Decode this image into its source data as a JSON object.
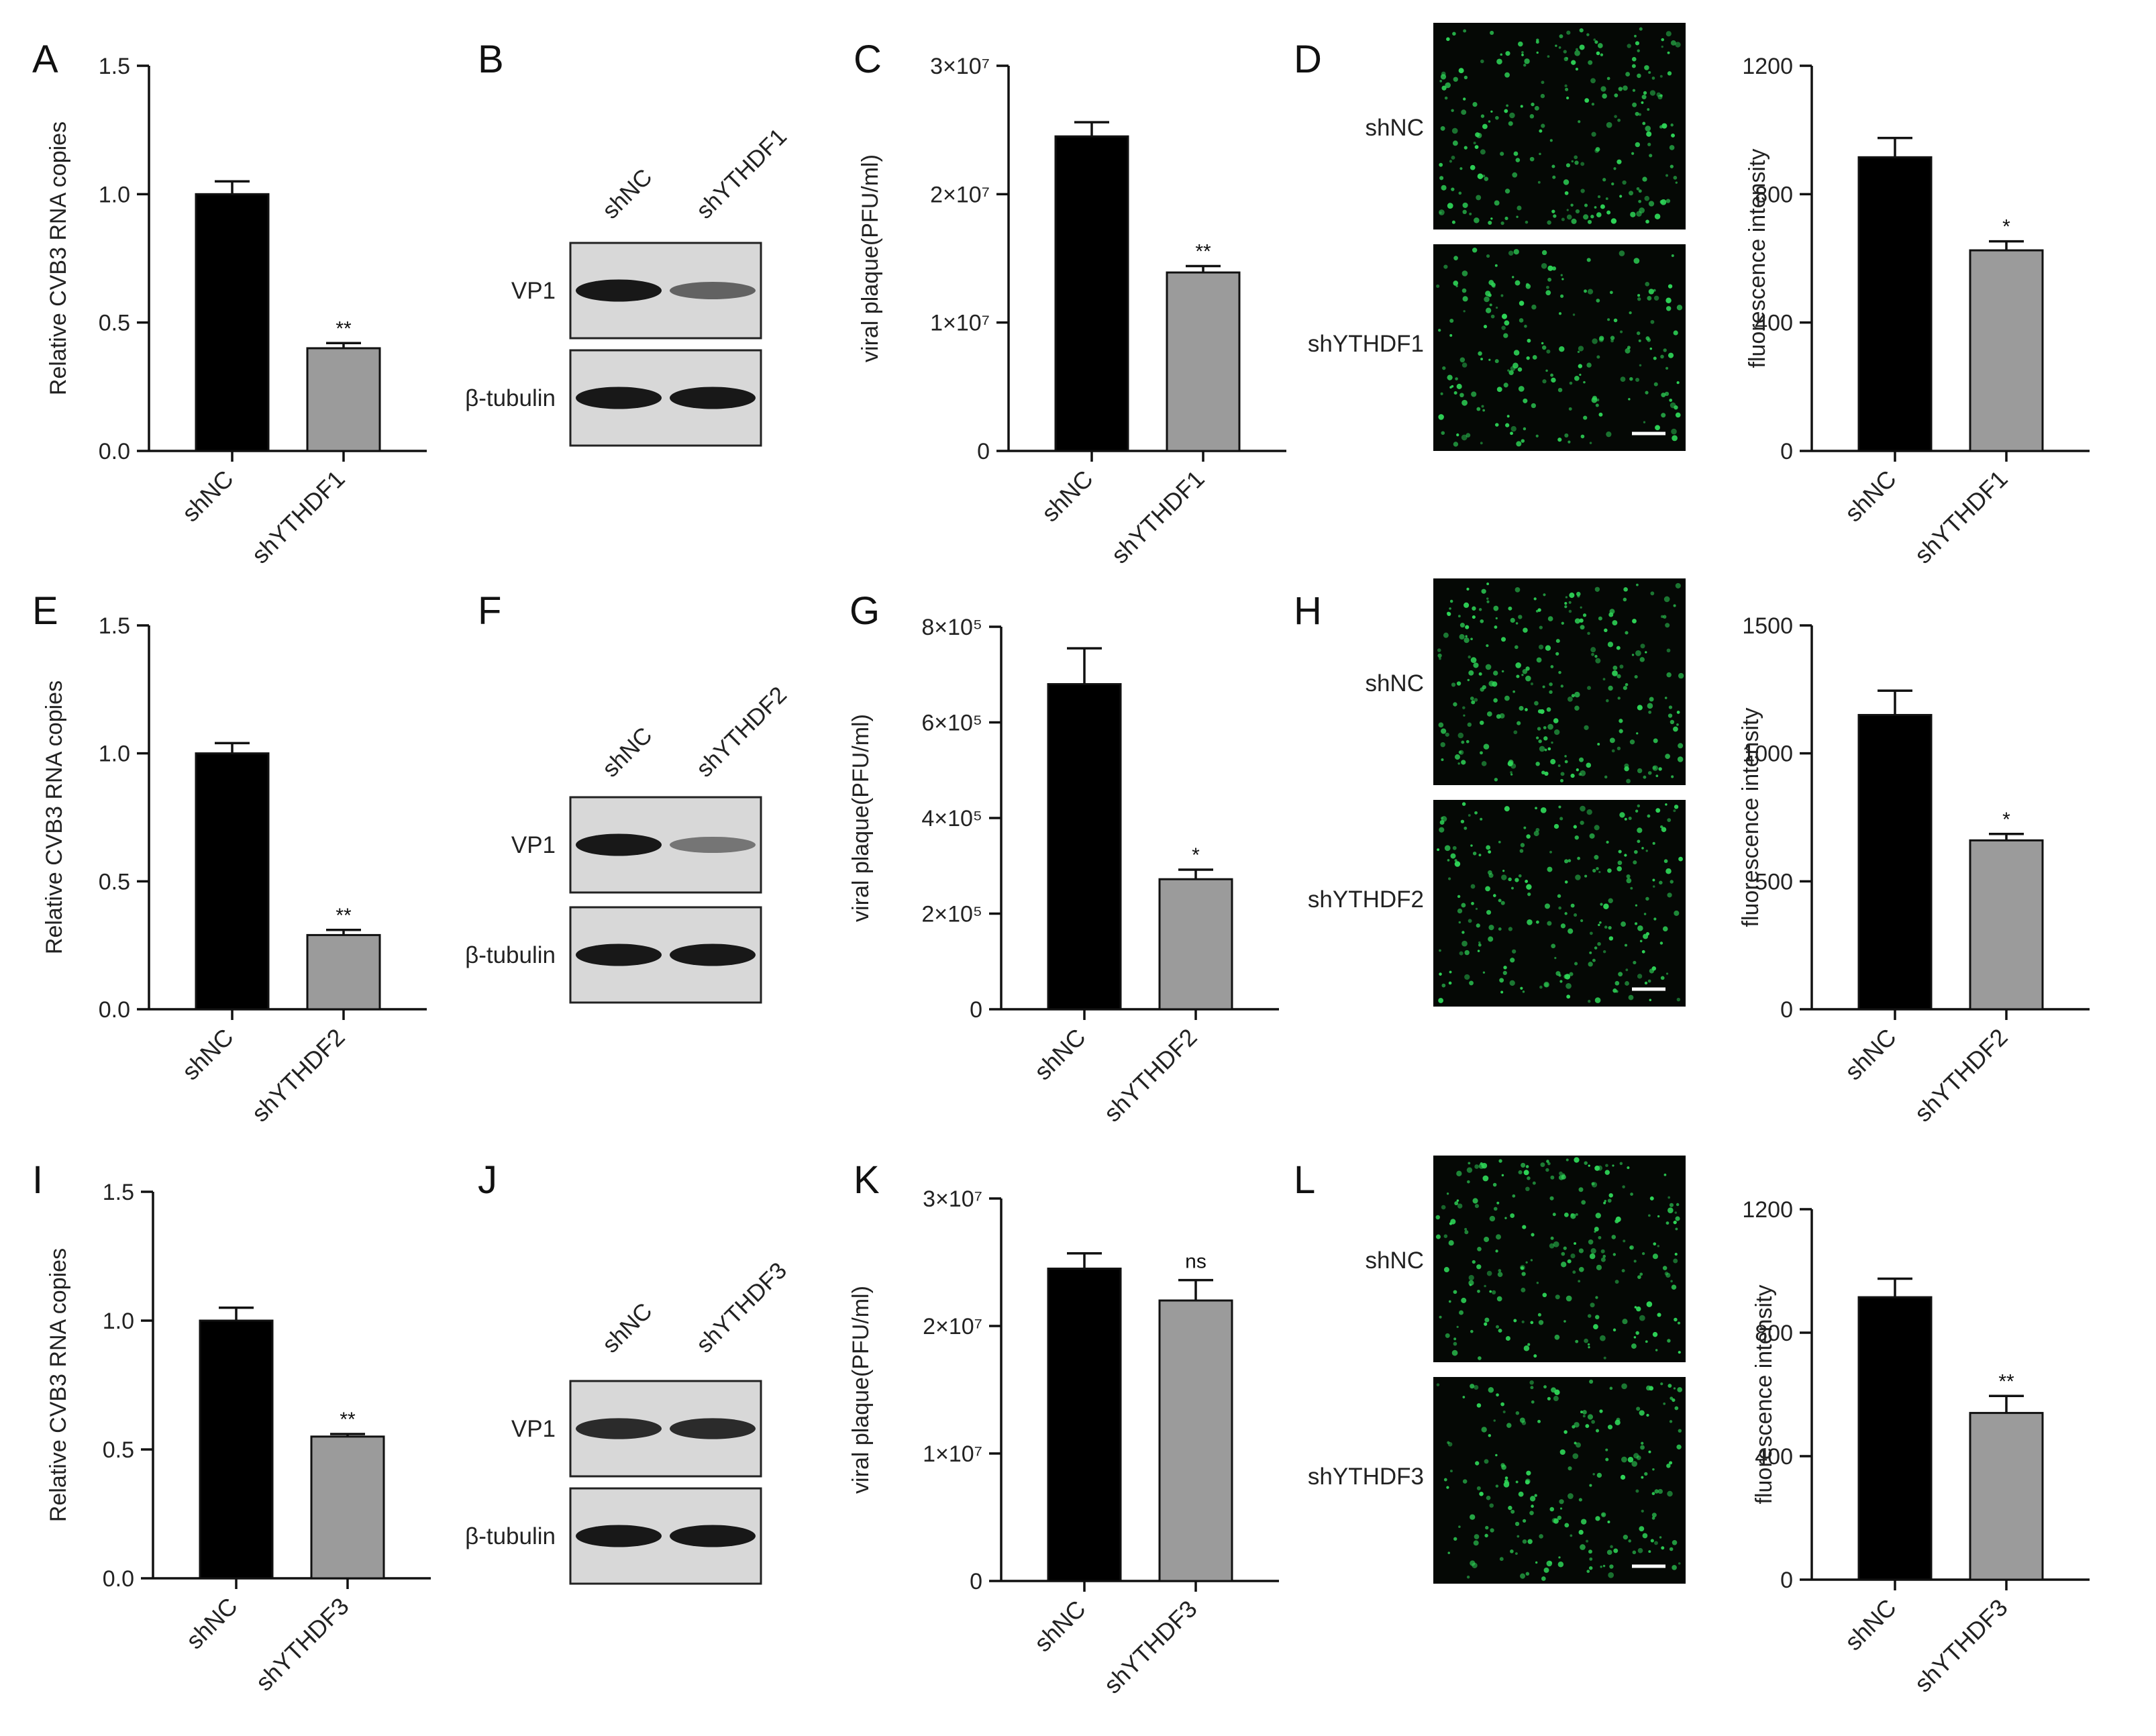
{
  "figure": {
    "colors": {
      "bar_control": "#000000",
      "bar_treatment": "#9b9b9b",
      "axis": "#111111",
      "micro_bg": "#050805",
      "micro_dot": "#2ed457",
      "blot_bg": "#d8d8d8"
    }
  },
  "chart_data": [
    {
      "panel": "A",
      "type": "bar",
      "categories": [
        "shNC",
        "shYTHDF1"
      ],
      "values": [
        1.0,
        0.4
      ],
      "errors": [
        0.05,
        0.02
      ],
      "significance": [
        "",
        "**"
      ],
      "ylabel": "Relative CVB3 RNA copies",
      "ylim": [
        0,
        1.5
      ],
      "yticks": [
        0,
        0.5,
        1.0,
        1.5
      ],
      "ytick_labels": [
        "0.0",
        "0.5",
        "1.0",
        "1.5"
      ]
    },
    {
      "panel": "C",
      "type": "bar",
      "categories": [
        "shNC",
        "shYTHDF1"
      ],
      "values": [
        24500000,
        13900000
      ],
      "errors": [
        1100000,
        500000
      ],
      "significance": [
        "",
        "**"
      ],
      "ylabel": "viral plaque(PFU/ml)",
      "ylim": [
        0,
        30000000
      ],
      "yticks": [
        0,
        10000000,
        20000000,
        30000000
      ],
      "ytick_labels": [
        "0",
        "1×10⁷",
        "2×10⁷",
        "3×10⁷"
      ]
    },
    {
      "panel": "D",
      "type": "bar",
      "categories": [
        "shNC",
        "shYTHDF1"
      ],
      "values": [
        915,
        625
      ],
      "errors": [
        60,
        28
      ],
      "significance": [
        "",
        "*"
      ],
      "ylabel": "fluorescence intensity",
      "ylim": [
        0,
        1200
      ],
      "yticks": [
        0,
        400,
        800,
        1200
      ],
      "ytick_labels": [
        "0",
        "400",
        "800",
        "1200"
      ]
    },
    {
      "panel": "E",
      "type": "bar",
      "categories": [
        "shNC",
        "shYTHDF2"
      ],
      "values": [
        1.0,
        0.29
      ],
      "errors": [
        0.04,
        0.02
      ],
      "significance": [
        "",
        "**"
      ],
      "ylabel": "Relative CVB3 RNA copies",
      "ylim": [
        0,
        1.5
      ],
      "yticks": [
        0,
        0.5,
        1.0,
        1.5
      ],
      "ytick_labels": [
        "0.0",
        "0.5",
        "1.0",
        "1.5"
      ]
    },
    {
      "panel": "G",
      "type": "bar",
      "categories": [
        "shNC",
        "shYTHDF2"
      ],
      "values": [
        680000,
        272000
      ],
      "errors": [
        75000,
        20000
      ],
      "significance": [
        "",
        "*"
      ],
      "ylabel": "viral plaque(PFU/ml)",
      "ylim": [
        0,
        800000
      ],
      "yticks": [
        0,
        200000,
        400000,
        600000,
        800000
      ],
      "ytick_labels": [
        "0",
        "2×10⁵",
        "4×10⁵",
        "6×10⁵",
        "8×10⁵"
      ]
    },
    {
      "panel": "H",
      "type": "bar",
      "categories": [
        "shNC",
        "shYTHDF2"
      ],
      "values": [
        1150,
        660
      ],
      "errors": [
        95,
        25
      ],
      "significance": [
        "",
        "*"
      ],
      "ylabel": "fluorescence intensity",
      "ylim": [
        0,
        1500
      ],
      "yticks": [
        0,
        500,
        1000,
        1500
      ],
      "ytick_labels": [
        "0",
        "500",
        "1000",
        "1500"
      ]
    },
    {
      "panel": "I",
      "type": "bar",
      "categories": [
        "shNC",
        "shYTHDF3"
      ],
      "values": [
        1.0,
        0.55
      ],
      "errors": [
        0.05,
        0.01
      ],
      "significance": [
        "",
        "**"
      ],
      "ylabel": "Relative CVB3 RNA copies",
      "ylim": [
        0,
        1.5
      ],
      "yticks": [
        0,
        0.5,
        1.0,
        1.5
      ],
      "ytick_labels": [
        "0.0",
        "0.5",
        "1.0",
        "1.5"
      ]
    },
    {
      "panel": "K",
      "type": "bar",
      "categories": [
        "shNC",
        "shYTHDF3"
      ],
      "values": [
        24500000,
        22000000
      ],
      "errors": [
        1200000,
        1600000
      ],
      "significance": [
        "",
        "ns"
      ],
      "ylabel": "viral plaque(PFU/ml)",
      "ylim": [
        0,
        30000000
      ],
      "yticks": [
        0,
        10000000,
        20000000,
        30000000
      ],
      "ytick_labels": [
        "0",
        "1×10⁷",
        "2×10⁷",
        "3×10⁷"
      ]
    },
    {
      "panel": "L",
      "type": "bar",
      "categories": [
        "shNC",
        "shYTHDF3"
      ],
      "values": [
        915,
        540
      ],
      "errors": [
        60,
        55
      ],
      "significance": [
        "",
        "**"
      ],
      "ylabel": "fluorescence intensity",
      "ylim": [
        0,
        1200
      ],
      "yticks": [
        0,
        400,
        800,
        1200
      ],
      "ytick_labels": [
        "0",
        "400",
        "800",
        "1200"
      ]
    }
  ],
  "blots": [
    {
      "panel": "B",
      "lanes": [
        "shNC",
        "shYTHDF1"
      ],
      "rows": [
        "VP1",
        "β-tubulin"
      ],
      "band_intensity": [
        [
          0.95,
          0.55
        ],
        [
          0.95,
          0.95
        ]
      ]
    },
    {
      "panel": "F",
      "lanes": [
        "shNC",
        "shYTHDF2"
      ],
      "rows": [
        "VP1",
        "β-tubulin"
      ],
      "band_intensity": [
        [
          0.95,
          0.45
        ],
        [
          0.95,
          0.95
        ]
      ]
    },
    {
      "panel": "J",
      "lanes": [
        "shNC",
        "shYTHDF3"
      ],
      "rows": [
        "VP1",
        "β-tubulin"
      ],
      "band_intensity": [
        [
          0.85,
          0.85
        ],
        [
          0.95,
          0.95
        ]
      ]
    }
  ],
  "micrographs": [
    {
      "panel": "D",
      "labels": [
        "shNC",
        "shYTHDF1"
      ],
      "dot_density": [
        0.9,
        0.75
      ]
    },
    {
      "panel": "H",
      "labels": [
        "shNC",
        "shYTHDF2"
      ],
      "dot_density": [
        0.95,
        0.85
      ]
    },
    {
      "panel": "L",
      "labels": [
        "shNC",
        "shYTHDF3"
      ],
      "dot_density": [
        0.85,
        0.75
      ]
    }
  ]
}
